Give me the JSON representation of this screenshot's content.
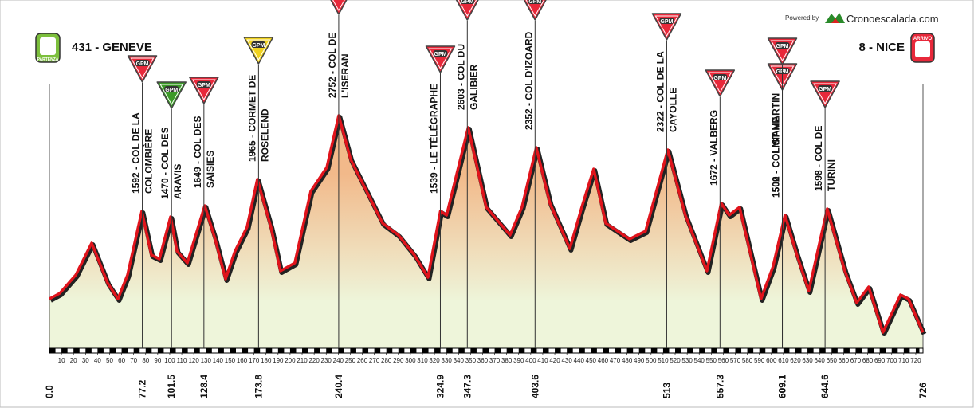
{
  "chart_data": {
    "type": "area",
    "powered_by": "Powered by",
    "brand": "Cronoescalada.com",
    "start": "431 - GENEVE",
    "start_badge": "PARTENZA",
    "finish": "8 - NICE",
    "finish_badge": "ARRIVO",
    "x": [
      0,
      8.6,
      21.9,
      35.1,
      41.7,
      48.3,
      57,
      64.9,
      76.8,
      84.8,
      91.4,
      100.7,
      106,
      114.6,
      129.1,
      137.7,
      146.4,
      154.3,
      164.2,
      172.8,
      184.1,
      192,
      203.9,
      217.2,
      230.5,
      240.4,
      250.3,
      263.6,
      276.8,
      290,
      303.3,
      314.6,
      324.9,
      330.1,
      348,
      363,
      382.8,
      392.7,
      404.6,
      415.9,
      432.5,
      442.4,
      452.3,
      462.3,
      482.1,
      495.4,
      513.9,
      528.5,
      546.4,
      558.3,
      564.9,
      573.5,
      591.4,
      601.3,
      611.3,
      621.2,
      631.1,
      646.4,
      661,
      670.9,
      680.8,
      692.7,
      707.3,
      713.9,
      726
    ],
    "values": [
      430,
      500,
      730,
      1130,
      880,
      630,
      430,
      730,
      1530,
      980,
      930,
      1460,
      1030,
      880,
      1600,
      1180,
      680,
      1030,
      1330,
      1930,
      1330,
      780,
      880,
      1780,
      2080,
      2730,
      2180,
      1780,
      1380,
      1230,
      980,
      700,
      1530,
      1480,
      2580,
      1580,
      1230,
      1580,
      2330,
      1630,
      1060,
      1580,
      2060,
      1380,
      1180,
      1280,
      2300,
      1480,
      780,
      1630,
      1480,
      1580,
      430,
      830,
      1480,
      980,
      530,
      1560,
      780,
      380,
      580,
      10,
      480,
      430,
      8
    ],
    "fill_top": "#f2b98a",
    "fill_bottom": "#eef5da",
    "line_color": "#e0141c",
    "xlim": [
      0,
      726
    ],
    "ylim": [
      -190,
      4180
    ],
    "xticks": [
      10,
      20,
      30,
      40,
      50,
      60,
      70,
      80,
      90,
      100,
      110,
      120,
      130,
      140,
      150,
      160,
      170,
      180,
      190,
      200,
      210,
      220,
      230,
      240,
      250,
      260,
      270,
      280,
      290,
      300,
      310,
      320,
      330,
      340,
      350,
      360,
      370,
      380,
      390,
      400,
      410,
      420,
      430,
      440,
      450,
      460,
      470,
      480,
      490,
      500,
      510,
      520,
      530,
      540,
      550,
      560,
      570,
      580,
      590,
      600,
      610,
      620,
      630,
      640,
      650,
      660,
      670,
      680,
      690,
      700,
      710,
      720
    ],
    "climbs": [
      {
        "km": 0,
        "km_label": {
          "value": 0,
          "label": "0.0"
        }
      },
      {
        "km": 77.2,
        "lines": [
          "1592 - COL DE LA",
          "COLOMBIÈRE"
        ],
        "badge": "GPM",
        "badge_color": "#e8283a"
      },
      {
        "km": 101.5,
        "lines": [
          "1470 - COL DES",
          "ARAVIS"
        ],
        "badge": "GPM",
        "badge_color": "#3c9a28"
      },
      {
        "km": 128.4,
        "lines": [
          "1649 - COL DES",
          "SAISIES"
        ],
        "badge": "GPM",
        "badge_color": "#e8283a"
      },
      {
        "km": 173.8,
        "lines": [
          "1965 - CORMET DE",
          "ROSELEND"
        ],
        "badge": "GPM",
        "badge_color": "#f0d21e"
      },
      {
        "km": 240.4,
        "lines": [
          "2752 - COL DE",
          "L'ISERAN"
        ],
        "badge": "GPM",
        "badge_color": "#e8283a"
      },
      {
        "km": 324.9,
        "lines": [
          "1539 - LE TÉLÉGRAPHE"
        ],
        "badge": "GPM",
        "badge_color": "#e8283a"
      },
      {
        "km": 347.3,
        "lines": [
          "2603 - COL DU",
          "GALIBIER"
        ],
        "badge": "GPM",
        "badge_color": "#e8283a"
      },
      {
        "km": 403.6,
        "lines": [
          "2352 - COL D'IZOARD"
        ],
        "badge": "GPM",
        "badge_color": "#e8283a"
      },
      {
        "km": 513,
        "lines": [
          "2322 - COL DE LA",
          "CAYOLLE"
        ],
        "badge": "GPM",
        "badge_color": "#e8283a"
      },
      {
        "km": 557.3,
        "lines": [
          "1672 - VALBERG"
        ],
        "badge": "GPM",
        "badge_color": "#e8283a"
      },
      {
        "km": 609.1,
        "lines": [
          "1500 - COLMIANE"
        ],
        "badge": "GPM",
        "badge_color": "#e8283a"
      },
      {
        "km": 609.1,
        "lines": [
          "1502 - COL ST MARTIN"
        ],
        "badge": "GPM",
        "badge_color": "#e8283a"
      },
      {
        "km": 644.6,
        "lines": [
          "1598 - COL DE",
          "TURINI"
        ],
        "badge": "GPM",
        "badge_color": "#e8283a"
      },
      {
        "km": 726
      }
    ]
  }
}
